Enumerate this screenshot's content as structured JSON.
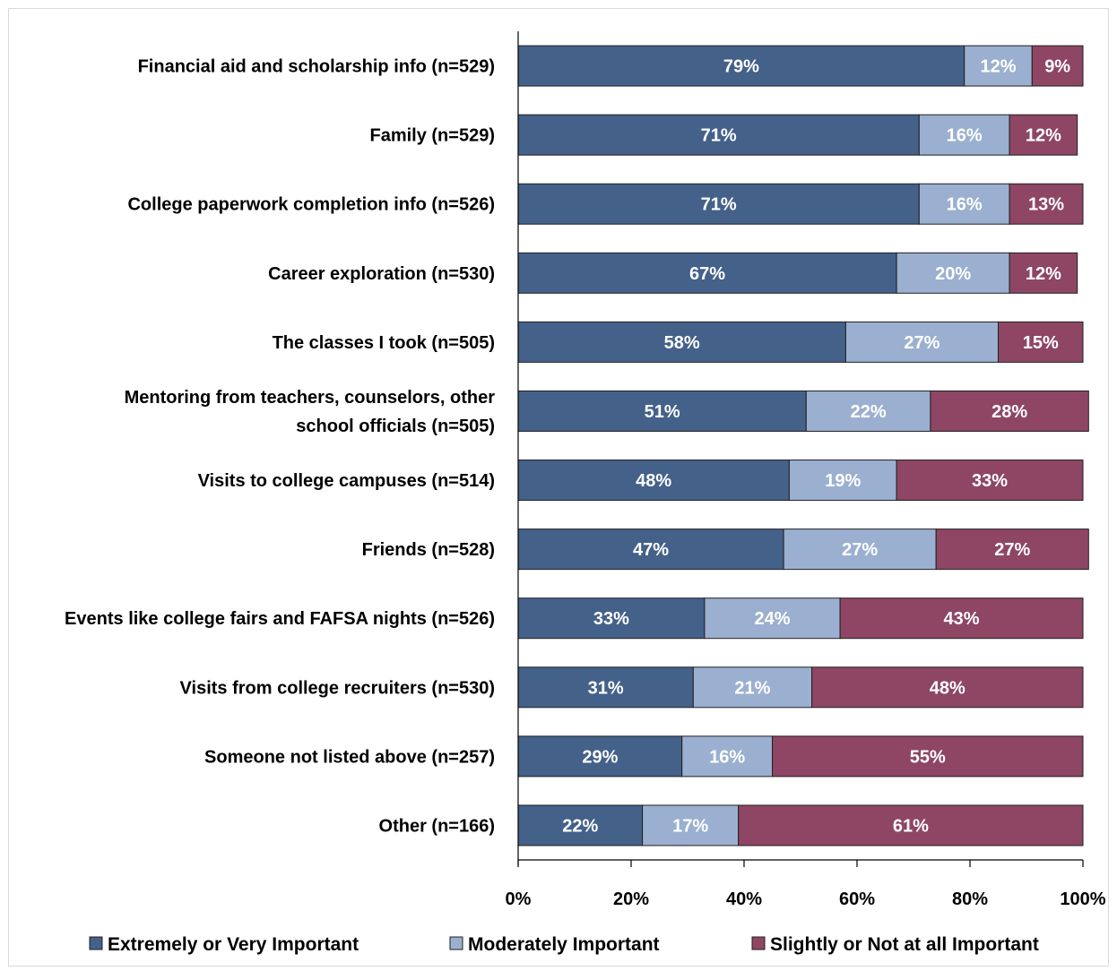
{
  "chart_data": {
    "type": "bar",
    "orientation": "horizontal",
    "stacked": true,
    "title": "",
    "xlabel": "",
    "ylabel": "",
    "xlim": [
      0,
      100
    ],
    "x_ticks": [
      "0%",
      "20%",
      "40%",
      "60%",
      "80%",
      "100%"
    ],
    "x_tick_values": [
      0,
      20,
      40,
      60,
      80,
      100
    ],
    "grid": false,
    "legend_position": "bottom",
    "categories": [
      [
        "Financial aid and scholarship info (n=529)"
      ],
      [
        "Family (n=529)"
      ],
      [
        "College paperwork completion info (n=526)"
      ],
      [
        "Career exploration (n=530)"
      ],
      [
        "The classes I took (n=505)"
      ],
      [
        "Mentoring from teachers, counselors, other",
        "school officials (n=505)"
      ],
      [
        "Visits to college campuses (n=514)"
      ],
      [
        "Friends (n=528)"
      ],
      [
        "Events like college fairs and FAFSA nights (n=526)"
      ],
      [
        "Visits from college recruiters (n=530)"
      ],
      [
        "Someone not listed above  (n=257)"
      ],
      [
        "Other (n=166)"
      ]
    ],
    "series": [
      {
        "name": "Extremely or Very Important",
        "color": "#44618a",
        "values": [
          79,
          71,
          71,
          67,
          58,
          51,
          48,
          47,
          33,
          31,
          29,
          22
        ],
        "labels": [
          "79%",
          "71%",
          "71%",
          "67%",
          "58%",
          "51%",
          "48%",
          "47%",
          "33%",
          "31%",
          "29%",
          "22%"
        ]
      },
      {
        "name": "Moderately Important",
        "color": "#9bb0d0",
        "values": [
          12,
          16,
          16,
          20,
          27,
          22,
          19,
          27,
          24,
          21,
          16,
          17
        ],
        "labels": [
          "12%",
          "16%",
          "16%",
          "20%",
          "27%",
          "22%",
          "19%",
          "27%",
          "24%",
          "21%",
          "16%",
          "17%"
        ]
      },
      {
        "name": "Slightly or Not at all Important",
        "color": "#8e4664",
        "values": [
          9,
          12,
          13,
          12,
          15,
          28,
          33,
          27,
          43,
          48,
          55,
          61
        ],
        "labels": [
          "9%",
          "12%",
          "13%",
          "12%",
          "15%",
          "28%",
          "33%",
          "27%",
          "43%",
          "48%",
          "55%",
          "61%"
        ]
      }
    ]
  }
}
